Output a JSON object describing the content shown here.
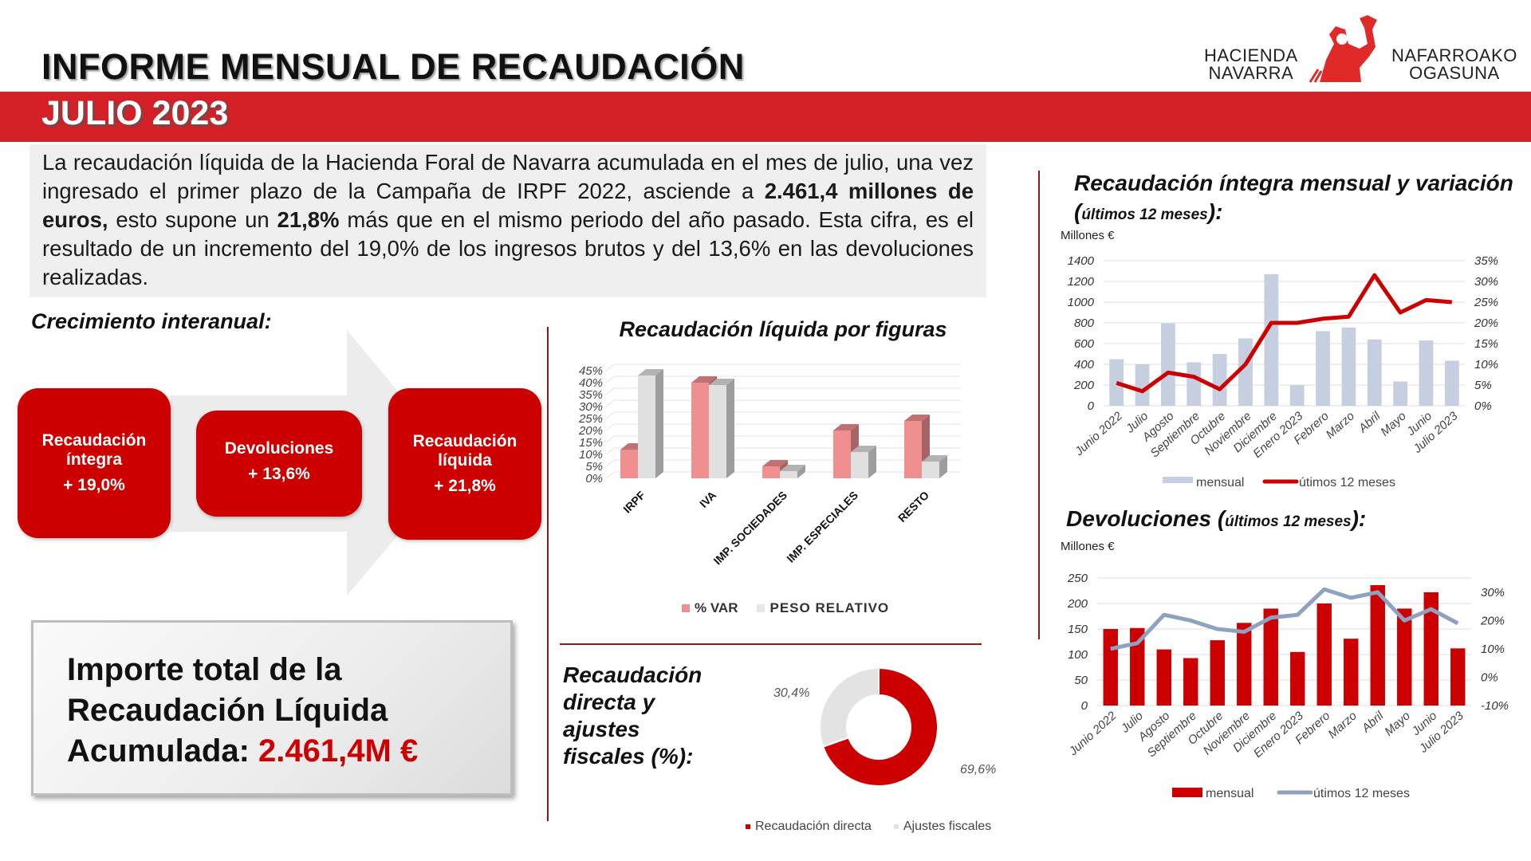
{
  "header": {
    "title": "INFORME MENSUAL DE RECAUDACIÓN",
    "month": "JULIO 2023",
    "logo": {
      "left_line1": "HACIENDA",
      "left_line2": "NAVARRA",
      "right_line1": "NAFARROAKO",
      "right_line2": "OGASUNA"
    }
  },
  "summary": {
    "p0": "La recaudación líquida de la Hacienda Foral de Navarra acumulada en el mes de julio, una vez ingresado el primer plazo de la Campaña de IRPF 2022, asciende a ",
    "p1": "2.461,4 millones de euros,",
    "p2": " esto supone un ",
    "p3": "21,8%",
    "p4": " más que en el mismo periodo del año pasado. Esta cifra, es el resultado de un incremento del 19,0% de los ingresos brutos y del 13,6% en las devoluciones  realizadas."
  },
  "growth": {
    "title": "Crecimiento interanual:",
    "boxes": [
      {
        "label": "Recaudación íntegra",
        "value": "+ 19,0%"
      },
      {
        "label": "Devoluciones",
        "value": "+ 13,6%"
      },
      {
        "label": "Recaudación líquida",
        "value": "+ 21,8%"
      }
    ]
  },
  "total": {
    "line1": "Importe total de la",
    "line2": "Recaudación Líquida",
    "line3": "Acumulada: ",
    "amount": "2.461,4M €"
  },
  "colors": {
    "brand_red": "#cc0000",
    "band_red": "#d42026",
    "var_pink": "#f08f8f",
    "peso_gray": "#e0e0e0",
    "line_blue": "#8ea2bf",
    "bar_blue": "#c5cfdf"
  },
  "chart_data": [
    {
      "id": "figuras",
      "type": "bar",
      "title": "Recaudación líquida por figuras",
      "categories": [
        "IRPF",
        "IVA",
        "IMP. SOCIEDADES",
        "IMP. ESPECIALES",
        "RESTO"
      ],
      "series": [
        {
          "name": "% VAR",
          "values": [
            12,
            40,
            5,
            20,
            24
          ],
          "color": "#f08f8f"
        },
        {
          "name": "PESO RELATIVO",
          "values": [
            43,
            39,
            3,
            11,
            7
          ],
          "color": "#e0e0e0"
        }
      ],
      "yticks": [
        "0%",
        "5%",
        "10%",
        "15%",
        "20%",
        "25%",
        "30%",
        "35%",
        "40%",
        "45%"
      ],
      "ylim": [
        0,
        45
      ],
      "legend": "bottom",
      "grid": true,
      "style": "3d"
    },
    {
      "id": "donut",
      "type": "pie",
      "title_lines": [
        "Recaudación",
        "directa y",
        "ajustes",
        "fiscales (%):"
      ],
      "slices": [
        {
          "name": "Recaudación directa",
          "value": 69.6,
          "label": "69,6%",
          "color": "#cc0000"
        },
        {
          "name": "Ajustes fiscales",
          "value": 30.4,
          "label": "30,4%",
          "color": "#e3e3e3"
        }
      ],
      "legend": "bottom"
    },
    {
      "id": "integra",
      "type": "bar",
      "title": "Recaudación íntegra mensual y variación",
      "title_suffix": "últimos 12 meses",
      "ylabel": "Millones €",
      "categories": [
        "Junio 2022",
        "Julio",
        "Agosto",
        "Septiembre",
        "Octubre",
        "Noviembre",
        "Diciembre",
        "Enero 2023",
        "Febrero",
        "Marzo",
        "Abril",
        "Mayo",
        "Junio",
        "Julio 2023"
      ],
      "series": [
        {
          "name": "mensual",
          "type": "bar",
          "axis": "left",
          "values": [
            450,
            400,
            795,
            420,
            500,
            650,
            1270,
            200,
            720,
            755,
            640,
            235,
            630,
            435
          ],
          "color": "#c5cfdf"
        },
        {
          "name": "útimos 12 meses",
          "type": "line",
          "axis": "right",
          "values": [
            5.5,
            3.5,
            8,
            7,
            4,
            10,
            20,
            20,
            21,
            21.5,
            31.5,
            22.5,
            25.5,
            25
          ],
          "color": "#cc0000"
        }
      ],
      "ylim": [
        0,
        1400
      ],
      "yticks": [
        "0",
        "200",
        "400",
        "600",
        "800",
        "1000",
        "1200",
        "1400"
      ],
      "ylim_right": [
        0,
        35
      ],
      "yticks_right": [
        "0%",
        "5%",
        "10%",
        "15%",
        "20%",
        "25%",
        "30%",
        "35%"
      ],
      "legend": "bottom",
      "grid": true
    },
    {
      "id": "devoluciones",
      "type": "bar",
      "title": "Devoluciones",
      "title_suffix": "últimos 12 meses",
      "ylabel": "Millones €",
      "categories": [
        "Junio 2022",
        "Julio",
        "Agosto",
        "Septiembre",
        "Octubre",
        "Noviembre",
        "Diciembre",
        "Enero 2023",
        "Febrero",
        "Marzo",
        "Abril",
        "Mayo",
        "Junio",
        "Julio 2023"
      ],
      "series": [
        {
          "name": "mensual",
          "type": "bar",
          "axis": "left",
          "values": [
            150,
            152,
            110,
            93,
            128,
            162,
            190,
            105,
            200,
            131,
            236,
            190,
            222,
            112
          ],
          "color": "#cc0000"
        },
        {
          "name": "útimos 12 meses",
          "type": "line",
          "axis": "right",
          "values": [
            10,
            12,
            22,
            20,
            17,
            16,
            21,
            22,
            31,
            28,
            30,
            20,
            24,
            19
          ],
          "color": "#8ea2bf"
        }
      ],
      "ylim": [
        0,
        250
      ],
      "yticks": [
        "0",
        "50",
        "100",
        "150",
        "200",
        "250"
      ],
      "ylim_right": [
        -10,
        35
      ],
      "yticks_right": [
        "-10%",
        "0%",
        "10%",
        "20%",
        "30%"
      ],
      "legend": "bottom",
      "grid": true
    }
  ]
}
